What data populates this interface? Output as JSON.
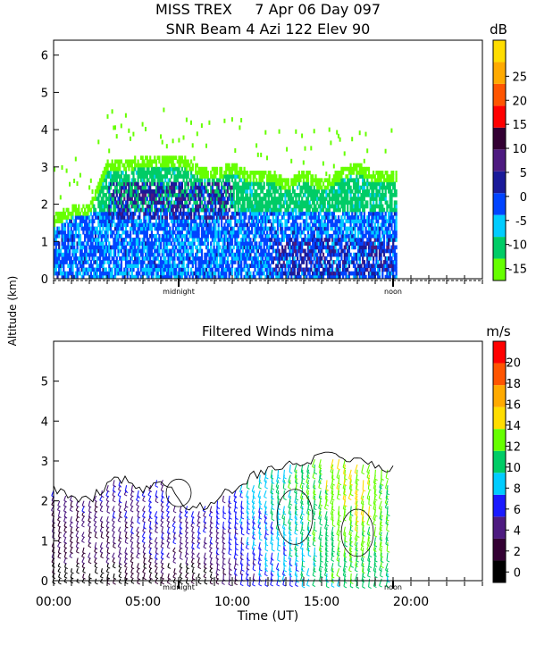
{
  "header": {
    "line1": "MISS TREX     7 Apr 06 Day 097",
    "line2": "SNR Beam 4 Azi 122 Elev 90"
  },
  "y_axis_label": "Altitude (km)",
  "x_axis_label": "Time (UT)",
  "colors": {
    "snr_scale": [
      "#66ff00",
      "#00cc66",
      "#00ccff",
      "#0044ff",
      "#1a1a99",
      "#4d1a80",
      "#330033",
      "#ff0000",
      "#ff5500",
      "#ffaa00",
      "#ffdd00"
    ],
    "wind_scale": [
      "#000000",
      "#330033",
      "#4d1a80",
      "#1a1aff",
      "#00ccff",
      "#00cc66",
      "#66ff00",
      "#ffdd00",
      "#ffaa00",
      "#ff5500",
      "#ff0000"
    ]
  },
  "chart_data": [
    {
      "type": "heatmap",
      "title": "SNR Beam 4 Azi 122 Elev 90",
      "xlabel": "",
      "ylabel": "Altitude (km)",
      "xlim": [
        0,
        24
      ],
      "ylim": [
        0,
        6.4
      ],
      "yticks": [
        0,
        1,
        2,
        3,
        4,
        5,
        6
      ],
      "x_markers": [
        {
          "x": 7.0,
          "label": "midnight"
        },
        {
          "x": 19.0,
          "label": "noon"
        }
      ],
      "colorbar": {
        "unit": "dB",
        "ticks": [
          -15,
          -10,
          -5,
          0,
          5,
          10,
          15,
          20,
          25
        ],
        "range": [
          -17.5,
          32.5
        ]
      },
      "data_extent_hours": [
        0,
        19.2
      ],
      "echo_top_km": [
        [
          0.0,
          1.7
        ],
        [
          1.0,
          1.9
        ],
        [
          2.0,
          2.0
        ],
        [
          3.0,
          3.2
        ],
        [
          4.0,
          3.1
        ],
        [
          5.0,
          3.3
        ],
        [
          6.0,
          3.2
        ],
        [
          7.0,
          3.3
        ],
        [
          8.0,
          3.0
        ],
        [
          9.0,
          2.9
        ],
        [
          10.0,
          3.1
        ],
        [
          11.0,
          2.8
        ],
        [
          12.0,
          2.9
        ],
        [
          13.0,
          2.6
        ],
        [
          14.0,
          2.9
        ],
        [
          15.0,
          2.6
        ],
        [
          16.0,
          2.9
        ],
        [
          17.0,
          3.1
        ],
        [
          18.0,
          2.8
        ],
        [
          19.2,
          2.9
        ]
      ],
      "features": [
        {
          "t": [
            3,
            10
          ],
          "z": [
            1.6,
            2.6
          ],
          "snr": 5
        },
        {
          "t": [
            12,
            19
          ],
          "z": [
            0.1,
            1.0
          ],
          "snr": 5
        },
        {
          "t": [
            0,
            19.2
          ],
          "z": [
            0,
            1.8
          ],
          "snr": -5
        }
      ]
    },
    {
      "type": "scatter",
      "title": "Filtered Winds nima",
      "xlabel": "Time (UT)",
      "ylabel": "Altitude (km)",
      "xlim": [
        0,
        24
      ],
      "ylim": [
        0,
        6
      ],
      "yticks": [
        0,
        1,
        2,
        3,
        4,
        5
      ],
      "xticks": [
        {
          "x": 0,
          "label": "00:00"
        },
        {
          "x": 5,
          "label": "05:00"
        },
        {
          "x": 10,
          "label": "10:00"
        },
        {
          "x": 15,
          "label": "15:00"
        },
        {
          "x": 20,
          "label": "20:00"
        }
      ],
      "x_markers": [
        {
          "x": 7.0,
          "label": "midnight"
        },
        {
          "x": 19.0,
          "label": "noon"
        }
      ],
      "colorbar": {
        "unit": "m/s",
        "ticks": [
          0,
          2,
          4,
          6,
          8,
          10,
          12,
          14,
          16,
          18,
          20
        ],
        "range": [
          -1,
          22
        ]
      },
      "data_extent_hours": [
        0,
        19.0
      ],
      "contour_level_ms": 12,
      "wind_top_km": [
        [
          0.0,
          2.3
        ],
        [
          2.0,
          2.0
        ],
        [
          3.5,
          2.6
        ],
        [
          5.0,
          2.3
        ],
        [
          6.0,
          2.6
        ],
        [
          7.0,
          2.0
        ],
        [
          8.0,
          1.8
        ],
        [
          9.0,
          2.0
        ],
        [
          10.0,
          2.3
        ],
        [
          11.0,
          2.6
        ],
        [
          12.0,
          2.8
        ],
        [
          13.0,
          2.9
        ],
        [
          14.0,
          3.0
        ],
        [
          15.0,
          3.1
        ],
        [
          16.0,
          3.1
        ],
        [
          17.0,
          3.0
        ],
        [
          18.0,
          2.9
        ],
        [
          19.0,
          2.8
        ]
      ],
      "speed_profile_ms": [
        [
          0.0,
          3
        ],
        [
          2.0,
          3
        ],
        [
          4.0,
          4
        ],
        [
          6.0,
          5
        ],
        [
          8.0,
          4
        ],
        [
          10.0,
          5
        ],
        [
          11.0,
          7
        ],
        [
          12.0,
          8
        ],
        [
          13.0,
          9
        ],
        [
          14.0,
          10
        ],
        [
          15.0,
          11
        ],
        [
          16.0,
          12
        ],
        [
          17.0,
          13
        ],
        [
          18.0,
          12
        ],
        [
          19.0,
          11
        ]
      ]
    }
  ]
}
